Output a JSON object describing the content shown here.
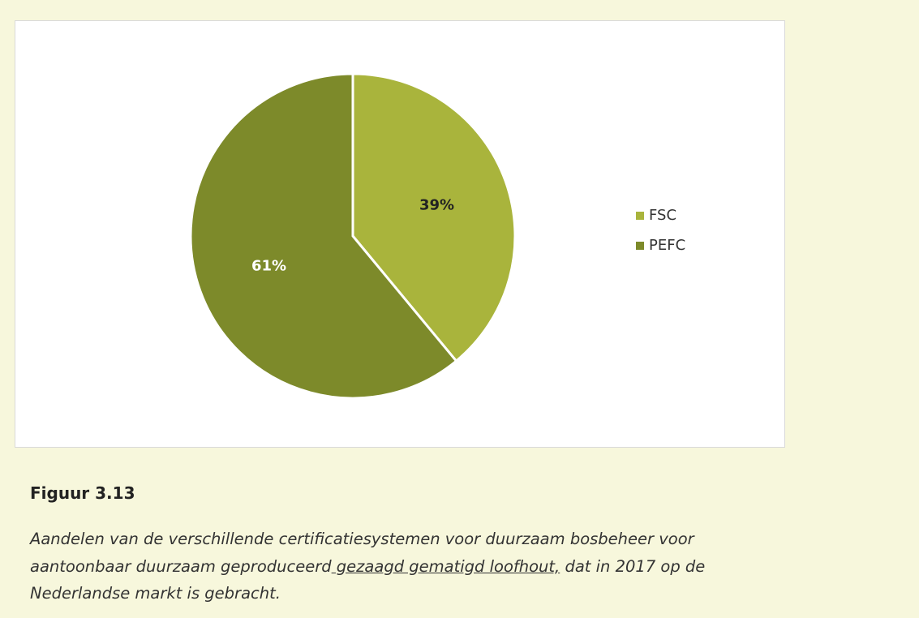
{
  "chart_data": {
    "type": "pie",
    "categories": [
      "FSC",
      "PEFC"
    ],
    "values": [
      39,
      61
    ],
    "value_labels": [
      "39%",
      "61%"
    ],
    "colors": [
      "#a9b43c",
      "#7d8a2a"
    ],
    "legend": "right"
  },
  "figure": {
    "title": "Figuur 3.13",
    "caption_lines": [
      "Aandelen van de verschillende certificatiesystemen voor duurzaam bosbeheer voor",
      {
        "before": "aantoonbaar duurzaam geproduceerd",
        "link": " gezaagd gematigd loofhout,",
        "after": " dat in 2017 op de"
      },
      "Nederlandse markt is gebracht."
    ]
  }
}
